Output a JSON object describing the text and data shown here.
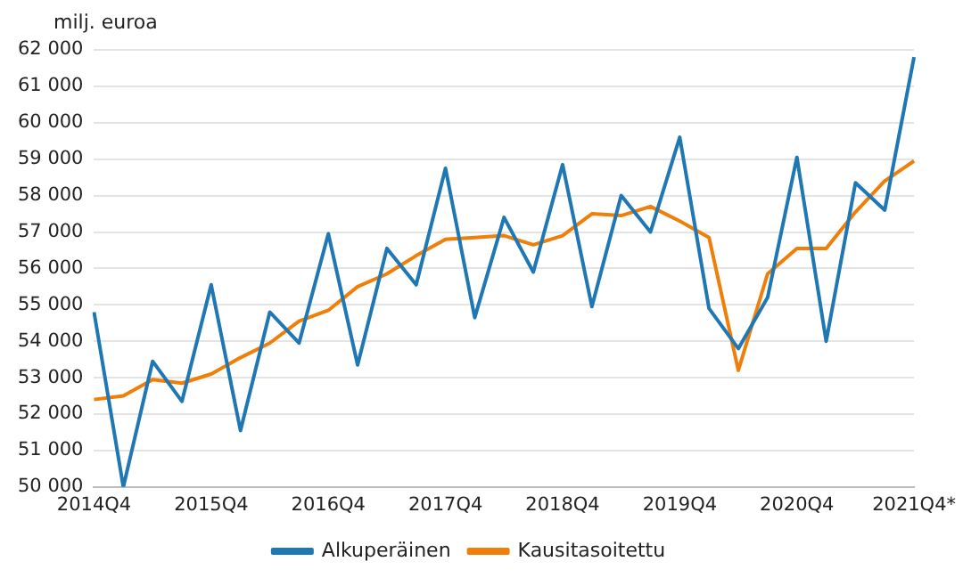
{
  "chart_data": {
    "type": "line",
    "ylabel": "milj. euroa",
    "categories": [
      "2014Q4",
      null,
      null,
      null,
      "2015Q4",
      null,
      null,
      null,
      "2016Q4",
      null,
      null,
      null,
      "2017Q4",
      null,
      null,
      null,
      "2018Q4",
      null,
      null,
      null,
      "2019Q4",
      null,
      null,
      null,
      "2020Q4",
      null,
      null,
      null,
      "2021Q4*"
    ],
    "series": [
      {
        "name": "Alkuperäinen",
        "color": "#1f77b4",
        "values": [
          54800,
          50000,
          53450,
          52350,
          55550,
          51550,
          54800,
          53950,
          56950,
          53350,
          56550,
          55550,
          58750,
          54650,
          57400,
          55900,
          58850,
          54950,
          58000,
          57000,
          59600,
          54900,
          53800,
          55200,
          59050,
          54000,
          58350,
          57600,
          61800
        ]
      },
      {
        "name": "Kausitasoitettu",
        "color": "#f07f09",
        "values": [
          52400,
          52500,
          52950,
          52850,
          53100,
          53550,
          53950,
          54550,
          54850,
          55500,
          55850,
          56350,
          56800,
          56850,
          56900,
          56650,
          56900,
          57500,
          57450,
          57700,
          57300,
          56850,
          53200,
          55850,
          56550,
          56550,
          57550,
          58400,
          58950
        ]
      }
    ],
    "ylim": [
      50000,
      62000
    ],
    "yticks": [
      {
        "value": 50000,
        "label": "50 000"
      },
      {
        "value": 51000,
        "label": "51 000"
      },
      {
        "value": 52000,
        "label": "52 000"
      },
      {
        "value": 53000,
        "label": "53 000"
      },
      {
        "value": 54000,
        "label": "54 000"
      },
      {
        "value": 55000,
        "label": "55 000"
      },
      {
        "value": 56000,
        "label": "56 000"
      },
      {
        "value": 57000,
        "label": "57 000"
      },
      {
        "value": 58000,
        "label": "58 000"
      },
      {
        "value": 59000,
        "label": "59 000"
      },
      {
        "value": 60000,
        "label": "60 000"
      },
      {
        "value": 61000,
        "label": "61 000"
      },
      {
        "value": 62000,
        "label": "62 000"
      }
    ],
    "grid": "y",
    "legend": "bottom",
    "marker": "none",
    "line_style": "solid"
  }
}
